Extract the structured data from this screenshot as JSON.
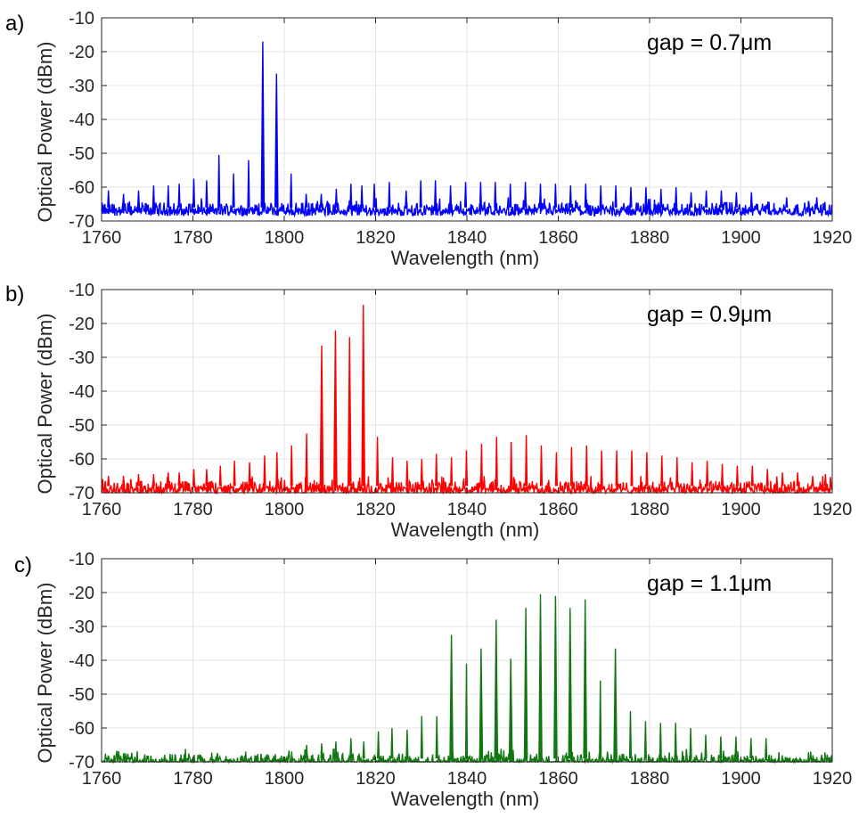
{
  "chart_data": [
    {
      "type": "line",
      "panel_label": "a)",
      "annotation": "gap = 0.7μm",
      "xlabel": "Wavelength (nm)",
      "ylabel": "Optical Power (dBm)",
      "xlim": [
        1760,
        1920
      ],
      "ylim": [
        -70,
        -10
      ],
      "xticks": [
        1760,
        1780,
        1800,
        1820,
        1840,
        1860,
        1880,
        1900,
        1920
      ],
      "yticks": [
        -70,
        -60,
        -50,
        -40,
        -30,
        -20,
        -10
      ],
      "grid": true,
      "color": "#0000ff",
      "noise_floor": -66,
      "peaks": [
        {
          "x": 1761.5,
          "y": -61
        },
        {
          "x": 1764.8,
          "y": -62
        },
        {
          "x": 1768.1,
          "y": -61
        },
        {
          "x": 1771.4,
          "y": -59.5
        },
        {
          "x": 1774.6,
          "y": -59.5
        },
        {
          "x": 1777.0,
          "y": -59
        },
        {
          "x": 1780.2,
          "y": -57.5
        },
        {
          "x": 1783.0,
          "y": -58
        },
        {
          "x": 1785.7,
          "y": -50.5
        },
        {
          "x": 1788.9,
          "y": -56
        },
        {
          "x": 1792.2,
          "y": -52
        },
        {
          "x": 1795.3,
          "y": -17
        },
        {
          "x": 1798.3,
          "y": -26.5
        },
        {
          "x": 1801.5,
          "y": -56
        },
        {
          "x": 1804.8,
          "y": -62
        },
        {
          "x": 1808.1,
          "y": -62
        },
        {
          "x": 1811.4,
          "y": -60.5
        },
        {
          "x": 1814.6,
          "y": -59
        },
        {
          "x": 1817.0,
          "y": -59.5
        },
        {
          "x": 1819.7,
          "y": -59
        },
        {
          "x": 1823.0,
          "y": -58.5
        },
        {
          "x": 1826.7,
          "y": -61
        },
        {
          "x": 1829.9,
          "y": -58
        },
        {
          "x": 1833.1,
          "y": -58
        },
        {
          "x": 1836.4,
          "y": -59.5
        },
        {
          "x": 1839.7,
          "y": -58.5
        },
        {
          "x": 1843.0,
          "y": -58.5
        },
        {
          "x": 1846.2,
          "y": -58.5
        },
        {
          "x": 1849.5,
          "y": -59
        },
        {
          "x": 1852.8,
          "y": -58.5
        },
        {
          "x": 1856.1,
          "y": -59
        },
        {
          "x": 1859.4,
          "y": -59
        },
        {
          "x": 1862.7,
          "y": -59.5
        },
        {
          "x": 1866.0,
          "y": -59
        },
        {
          "x": 1869.3,
          "y": -59.5
        },
        {
          "x": 1872.6,
          "y": -59.5
        },
        {
          "x": 1875.9,
          "y": -60
        },
        {
          "x": 1879.2,
          "y": -60
        },
        {
          "x": 1882.5,
          "y": -60.5
        },
        {
          "x": 1885.8,
          "y": -60
        },
        {
          "x": 1889.1,
          "y": -61.5
        },
        {
          "x": 1892.4,
          "y": -61
        },
        {
          "x": 1895.7,
          "y": -61
        },
        {
          "x": 1899.0,
          "y": -61.5
        },
        {
          "x": 1902.3,
          "y": -61.5
        },
        {
          "x": 1910.0,
          "y": -63
        },
        {
          "x": 1916.6,
          "y": -63
        }
      ]
    },
    {
      "type": "line",
      "panel_label": "b)",
      "annotation": "gap = 0.9μm",
      "xlabel": "Wavelength (nm)",
      "ylabel": "Optical Power (dBm)",
      "xlim": [
        1760,
        1920
      ],
      "ylim": [
        -70,
        -10
      ],
      "xticks": [
        1760,
        1780,
        1800,
        1820,
        1840,
        1860,
        1880,
        1900,
        1920
      ],
      "yticks": [
        -70,
        -60,
        -50,
        -40,
        -30,
        -20,
        -10
      ],
      "grid": true,
      "color": "#ff0000",
      "noise_floor": -68,
      "peaks": [
        {
          "x": 1761.5,
          "y": -65
        },
        {
          "x": 1764.8,
          "y": -65
        },
        {
          "x": 1768.1,
          "y": -64.5
        },
        {
          "x": 1771.4,
          "y": -64.5
        },
        {
          "x": 1774.6,
          "y": -64
        },
        {
          "x": 1777.0,
          "y": -64
        },
        {
          "x": 1780.2,
          "y": -63
        },
        {
          "x": 1783.0,
          "y": -63
        },
        {
          "x": 1786.0,
          "y": -62
        },
        {
          "x": 1789.1,
          "y": -60.5
        },
        {
          "x": 1792.4,
          "y": -61
        },
        {
          "x": 1795.7,
          "y": -59
        },
        {
          "x": 1798.4,
          "y": -58
        },
        {
          "x": 1801.6,
          "y": -56
        },
        {
          "x": 1804.9,
          "y": -52.5
        },
        {
          "x": 1808.2,
          "y": -26.5
        },
        {
          "x": 1811.2,
          "y": -22
        },
        {
          "x": 1814.3,
          "y": -24
        },
        {
          "x": 1817.3,
          "y": -14.5
        },
        {
          "x": 1820.4,
          "y": -53.5
        },
        {
          "x": 1823.7,
          "y": -59.5
        },
        {
          "x": 1826.9,
          "y": -60.5
        },
        {
          "x": 1830.1,
          "y": -60
        },
        {
          "x": 1833.3,
          "y": -58.5
        },
        {
          "x": 1836.6,
          "y": -59.5
        },
        {
          "x": 1839.9,
          "y": -57.5
        },
        {
          "x": 1843.2,
          "y": -55.5
        },
        {
          "x": 1846.5,
          "y": -53.5
        },
        {
          "x": 1849.7,
          "y": -55
        },
        {
          "x": 1853.0,
          "y": -53
        },
        {
          "x": 1856.3,
          "y": -56
        },
        {
          "x": 1859.6,
          "y": -58
        },
        {
          "x": 1862.9,
          "y": -56.5
        },
        {
          "x": 1866.2,
          "y": -56
        },
        {
          "x": 1869.5,
          "y": -57.5
        },
        {
          "x": 1872.8,
          "y": -57.5
        },
        {
          "x": 1876.1,
          "y": -57.5
        },
        {
          "x": 1879.4,
          "y": -58
        },
        {
          "x": 1882.7,
          "y": -59
        },
        {
          "x": 1886.0,
          "y": -59.5
        },
        {
          "x": 1889.3,
          "y": -61
        },
        {
          "x": 1892.6,
          "y": -60.5
        },
        {
          "x": 1895.9,
          "y": -61.5
        },
        {
          "x": 1899.2,
          "y": -62
        },
        {
          "x": 1902.5,
          "y": -62
        },
        {
          "x": 1905.8,
          "y": -63
        },
        {
          "x": 1909.1,
          "y": -64
        },
        {
          "x": 1912.4,
          "y": -64
        },
        {
          "x": 1915.7,
          "y": -65
        },
        {
          "x": 1918.5,
          "y": -64.5
        }
      ]
    },
    {
      "type": "line",
      "panel_label": "c)",
      "annotation": "gap = 1.1μm",
      "xlabel": "Wavelength (nm)",
      "ylabel": "Optical Power (dBm)",
      "xlim": [
        1760,
        1920
      ],
      "ylim": [
        -70,
        -10
      ],
      "xticks": [
        1760,
        1780,
        1800,
        1820,
        1840,
        1860,
        1880,
        1900,
        1920
      ],
      "yticks": [
        -70,
        -60,
        -50,
        -40,
        -30,
        -20,
        -10
      ],
      "grid": true,
      "color": "#117711",
      "noise_floor": -69,
      "peaks": [
        {
          "x": 1804.9,
          "y": -65
        },
        {
          "x": 1808.2,
          "y": -64.5
        },
        {
          "x": 1811.3,
          "y": -64
        },
        {
          "x": 1814.6,
          "y": -63
        },
        {
          "x": 1817.4,
          "y": -64
        },
        {
          "x": 1820.6,
          "y": -61
        },
        {
          "x": 1823.6,
          "y": -60
        },
        {
          "x": 1826.9,
          "y": -60.5
        },
        {
          "x": 1830.1,
          "y": -56.5
        },
        {
          "x": 1833.4,
          "y": -56.5
        },
        {
          "x": 1836.6,
          "y": -32.5
        },
        {
          "x": 1839.9,
          "y": -41
        },
        {
          "x": 1843.1,
          "y": -36.5
        },
        {
          "x": 1846.4,
          "y": -28
        },
        {
          "x": 1849.6,
          "y": -39.5
        },
        {
          "x": 1852.9,
          "y": -24.5
        },
        {
          "x": 1856.1,
          "y": -20.5
        },
        {
          "x": 1859.4,
          "y": -21
        },
        {
          "x": 1862.6,
          "y": -24.5
        },
        {
          "x": 1865.9,
          "y": -22
        },
        {
          "x": 1869.2,
          "y": -46
        },
        {
          "x": 1872.5,
          "y": -36.5
        },
        {
          "x": 1875.8,
          "y": -55
        },
        {
          "x": 1879.1,
          "y": -58
        },
        {
          "x": 1882.4,
          "y": -58.5
        },
        {
          "x": 1885.7,
          "y": -58.5
        },
        {
          "x": 1889.0,
          "y": -60
        },
        {
          "x": 1892.3,
          "y": -62
        },
        {
          "x": 1895.6,
          "y": -62.5
        },
        {
          "x": 1898.9,
          "y": -62.5
        },
        {
          "x": 1902.2,
          "y": -63
        },
        {
          "x": 1905.5,
          "y": -63
        }
      ]
    }
  ]
}
